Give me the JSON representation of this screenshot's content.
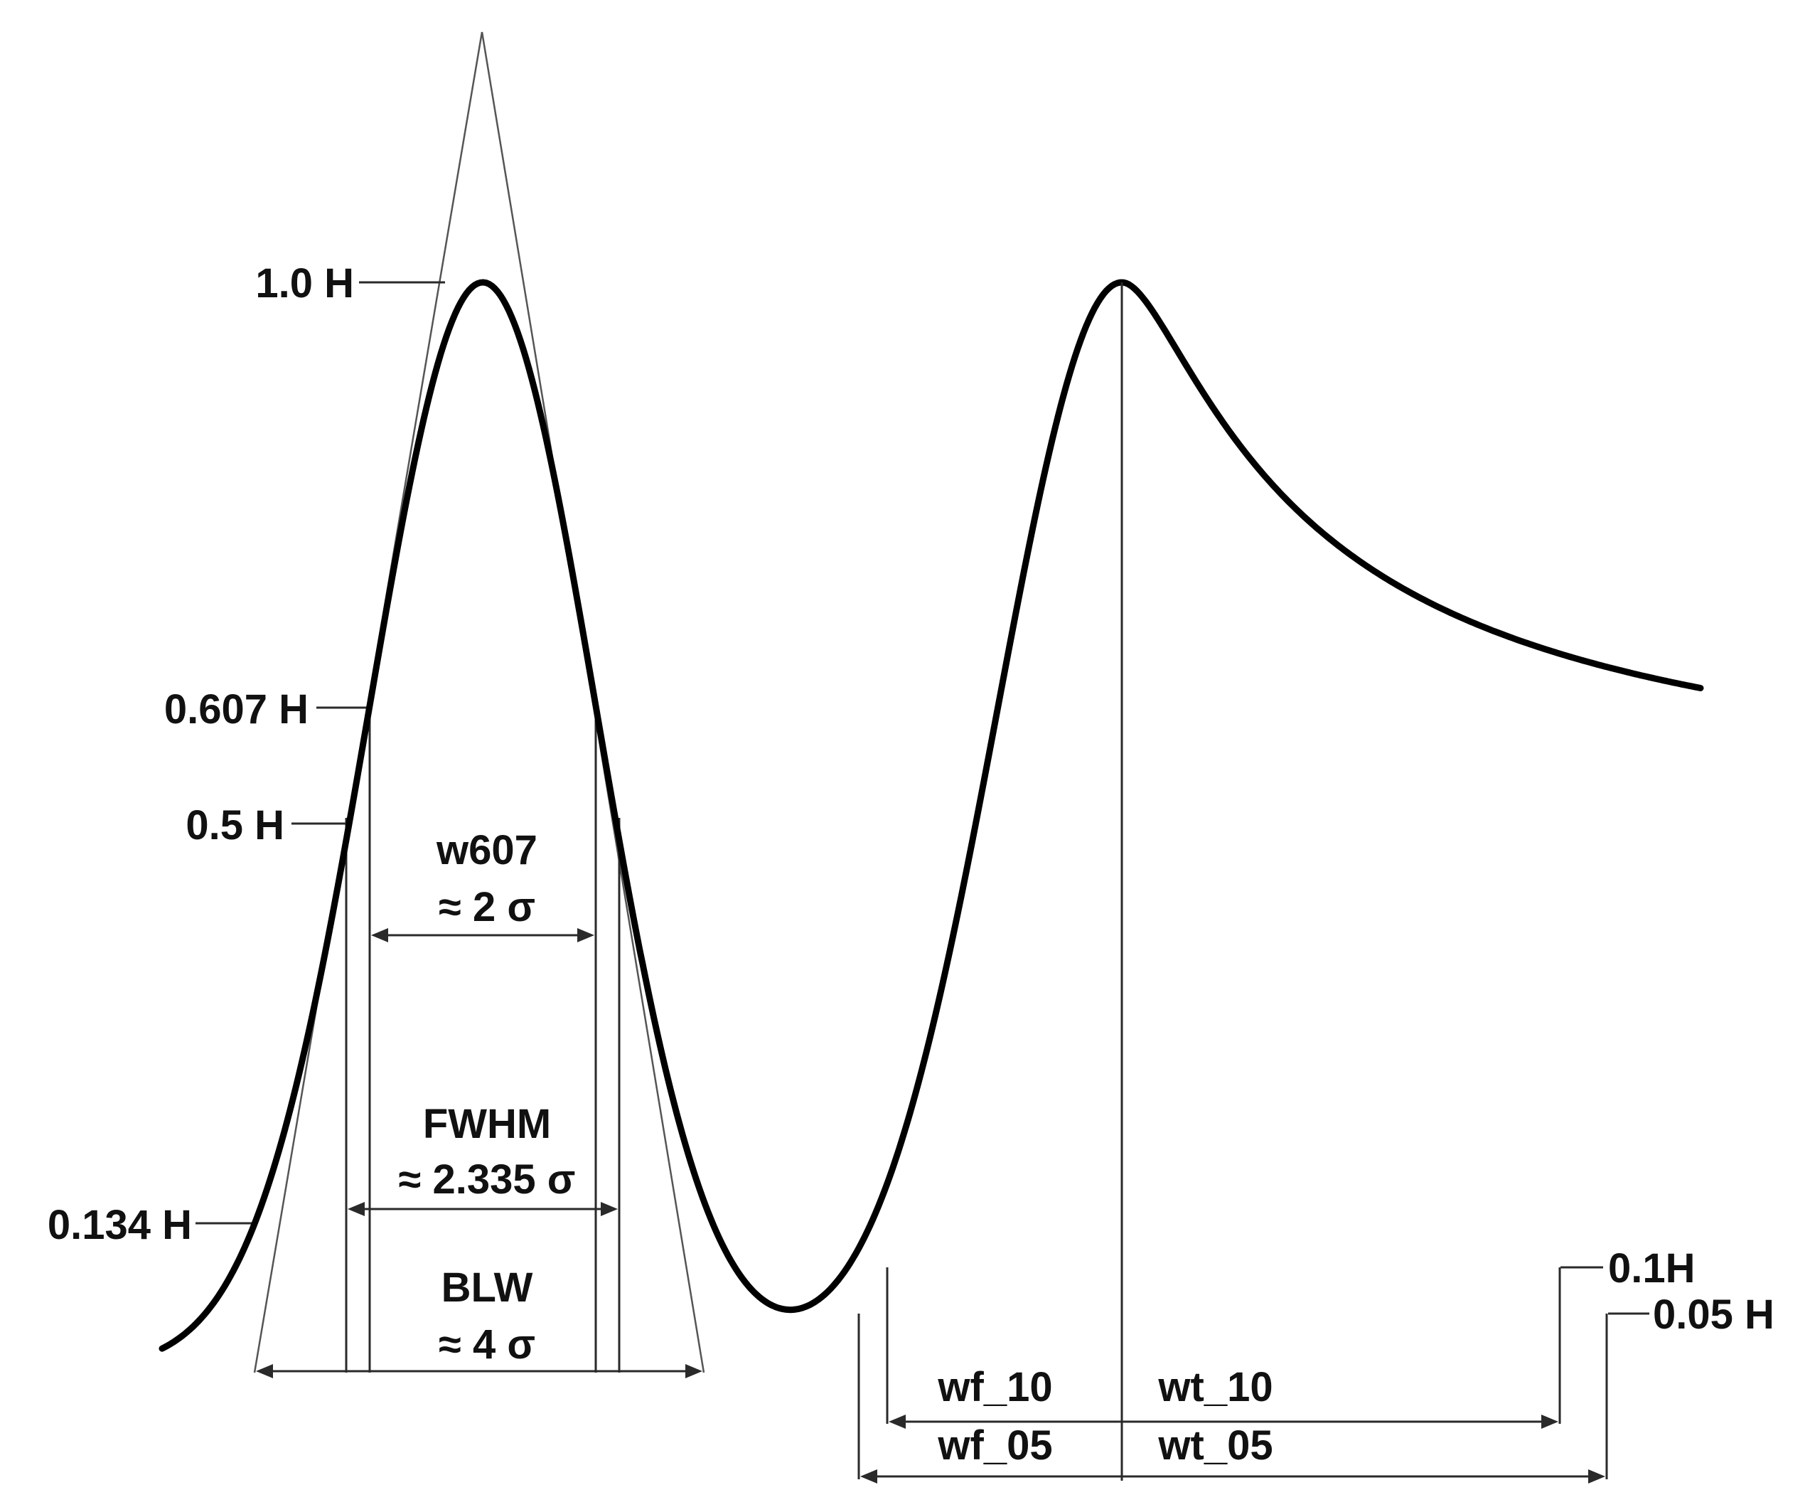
{
  "figure": {
    "labels": {
      "h_1_0": "1.0 H",
      "h_0_607": "0.607 H",
      "h_0_5": "0.5 H",
      "h_0_134": "0.134 H",
      "w607_line1": "w607",
      "w607_line2": "≈ 2 σ",
      "fwhm_line1": "FWHM",
      "fwhm_line2": "≈ 2.335 σ",
      "blw_line1": "BLW",
      "blw_line2": "≈ 4 σ",
      "h_0_1": "0.1H",
      "h_0_05": "0.05 H",
      "wf_10": "wf_10",
      "wt_10": "wt_10",
      "wf_05": "wf_05",
      "wt_05": "wt_05"
    }
  }
}
